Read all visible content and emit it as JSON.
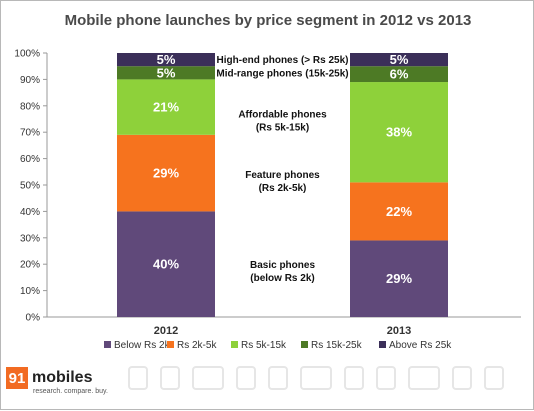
{
  "chart_data": {
    "type": "bar",
    "stacked": true,
    "title": "Mobile phone launches by price segment in 2012 vs 2013",
    "categories": [
      "2012",
      "2013"
    ],
    "ylim": [
      0,
      100
    ],
    "yticks": [
      "0%",
      "10%",
      "20%",
      "30%",
      "40%",
      "50%",
      "60%",
      "70%",
      "80%",
      "90%",
      "100%"
    ],
    "series": [
      {
        "name": "Below Rs 2k",
        "values": [
          40,
          29
        ],
        "labels": [
          "40%",
          "29%"
        ],
        "color": "#60497a"
      },
      {
        "name": "Rs 2k-5k",
        "values": [
          29,
          22
        ],
        "labels": [
          "29%",
          "22%"
        ],
        "color": "#f6731e"
      },
      {
        "name": "Rs 5k-15k",
        "values": [
          21,
          38
        ],
        "labels": [
          "21%",
          "38%"
        ],
        "color": "#8ed13a"
      },
      {
        "name": "Rs 15k-25k",
        "values": [
          5,
          6
        ],
        "labels": [
          "5%",
          "6%"
        ],
        "color": "#4d7a25"
      },
      {
        "name": "Above Rs 25k",
        "values": [
          5,
          5
        ],
        "labels": [
          "5%",
          "5%"
        ],
        "color": "#3b2f59"
      }
    ],
    "annotations": [
      {
        "lines": [
          "High-end phones (> Rs 25k)"
        ],
        "at": 97.5
      },
      {
        "lines": [
          "Mid-range phones (15k-25k)"
        ],
        "at": 92.5
      },
      {
        "lines": [
          "Affordable phones",
          "(Rs 5k-15k)"
        ],
        "at": 74.5
      },
      {
        "lines": [
          "Feature phones",
          "(Rs 2k-5k)"
        ],
        "at": 51.5
      },
      {
        "lines": [
          "Basic phones",
          "(below Rs 2k)"
        ],
        "at": 17.5
      }
    ],
    "grid": false,
    "legend_position": "bottom"
  },
  "logo": {
    "number": "91",
    "word": "mobiles",
    "tagline": "research. compare. buy."
  }
}
